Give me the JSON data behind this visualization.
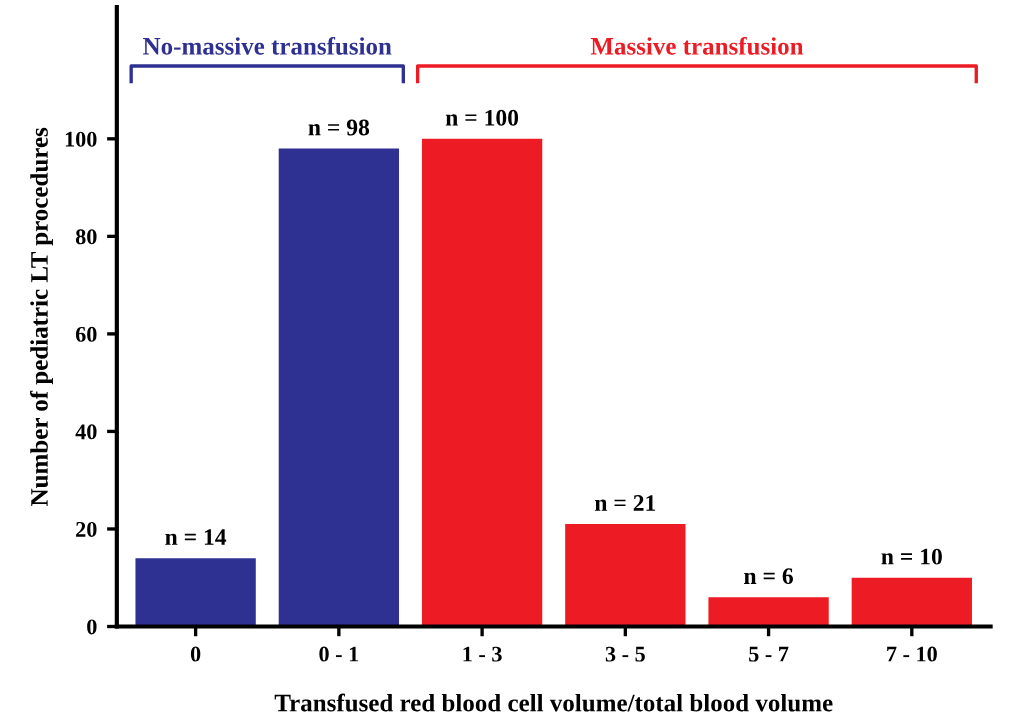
{
  "chart_data": {
    "type": "bar",
    "xlabel": "Transfused red blood cell volume/total blood volume",
    "ylabel": "Number of pediatric LT procedures",
    "categories": [
      "0",
      "0 - 1",
      "1 - 3",
      "3 - 5",
      "5 - 7",
      "7 - 10"
    ],
    "values": [
      14,
      98,
      100,
      21,
      6,
      10
    ],
    "colors": [
      "#2e3192",
      "#2e3192",
      "#ed1c24",
      "#ed1c24",
      "#ed1c24",
      "#ed1c24"
    ],
    "value_labels": [
      "n = 14",
      "n = 98",
      "n = 100",
      "n = 21",
      "n = 6",
      "n = 10"
    ],
    "annotations": [
      "No-massive transfusion",
      "Massive transfusion"
    ],
    "ylim": [
      0,
      127
    ],
    "yticks": [
      0,
      20,
      40,
      60,
      80,
      100
    ],
    "grid": false,
    "legend": false
  }
}
